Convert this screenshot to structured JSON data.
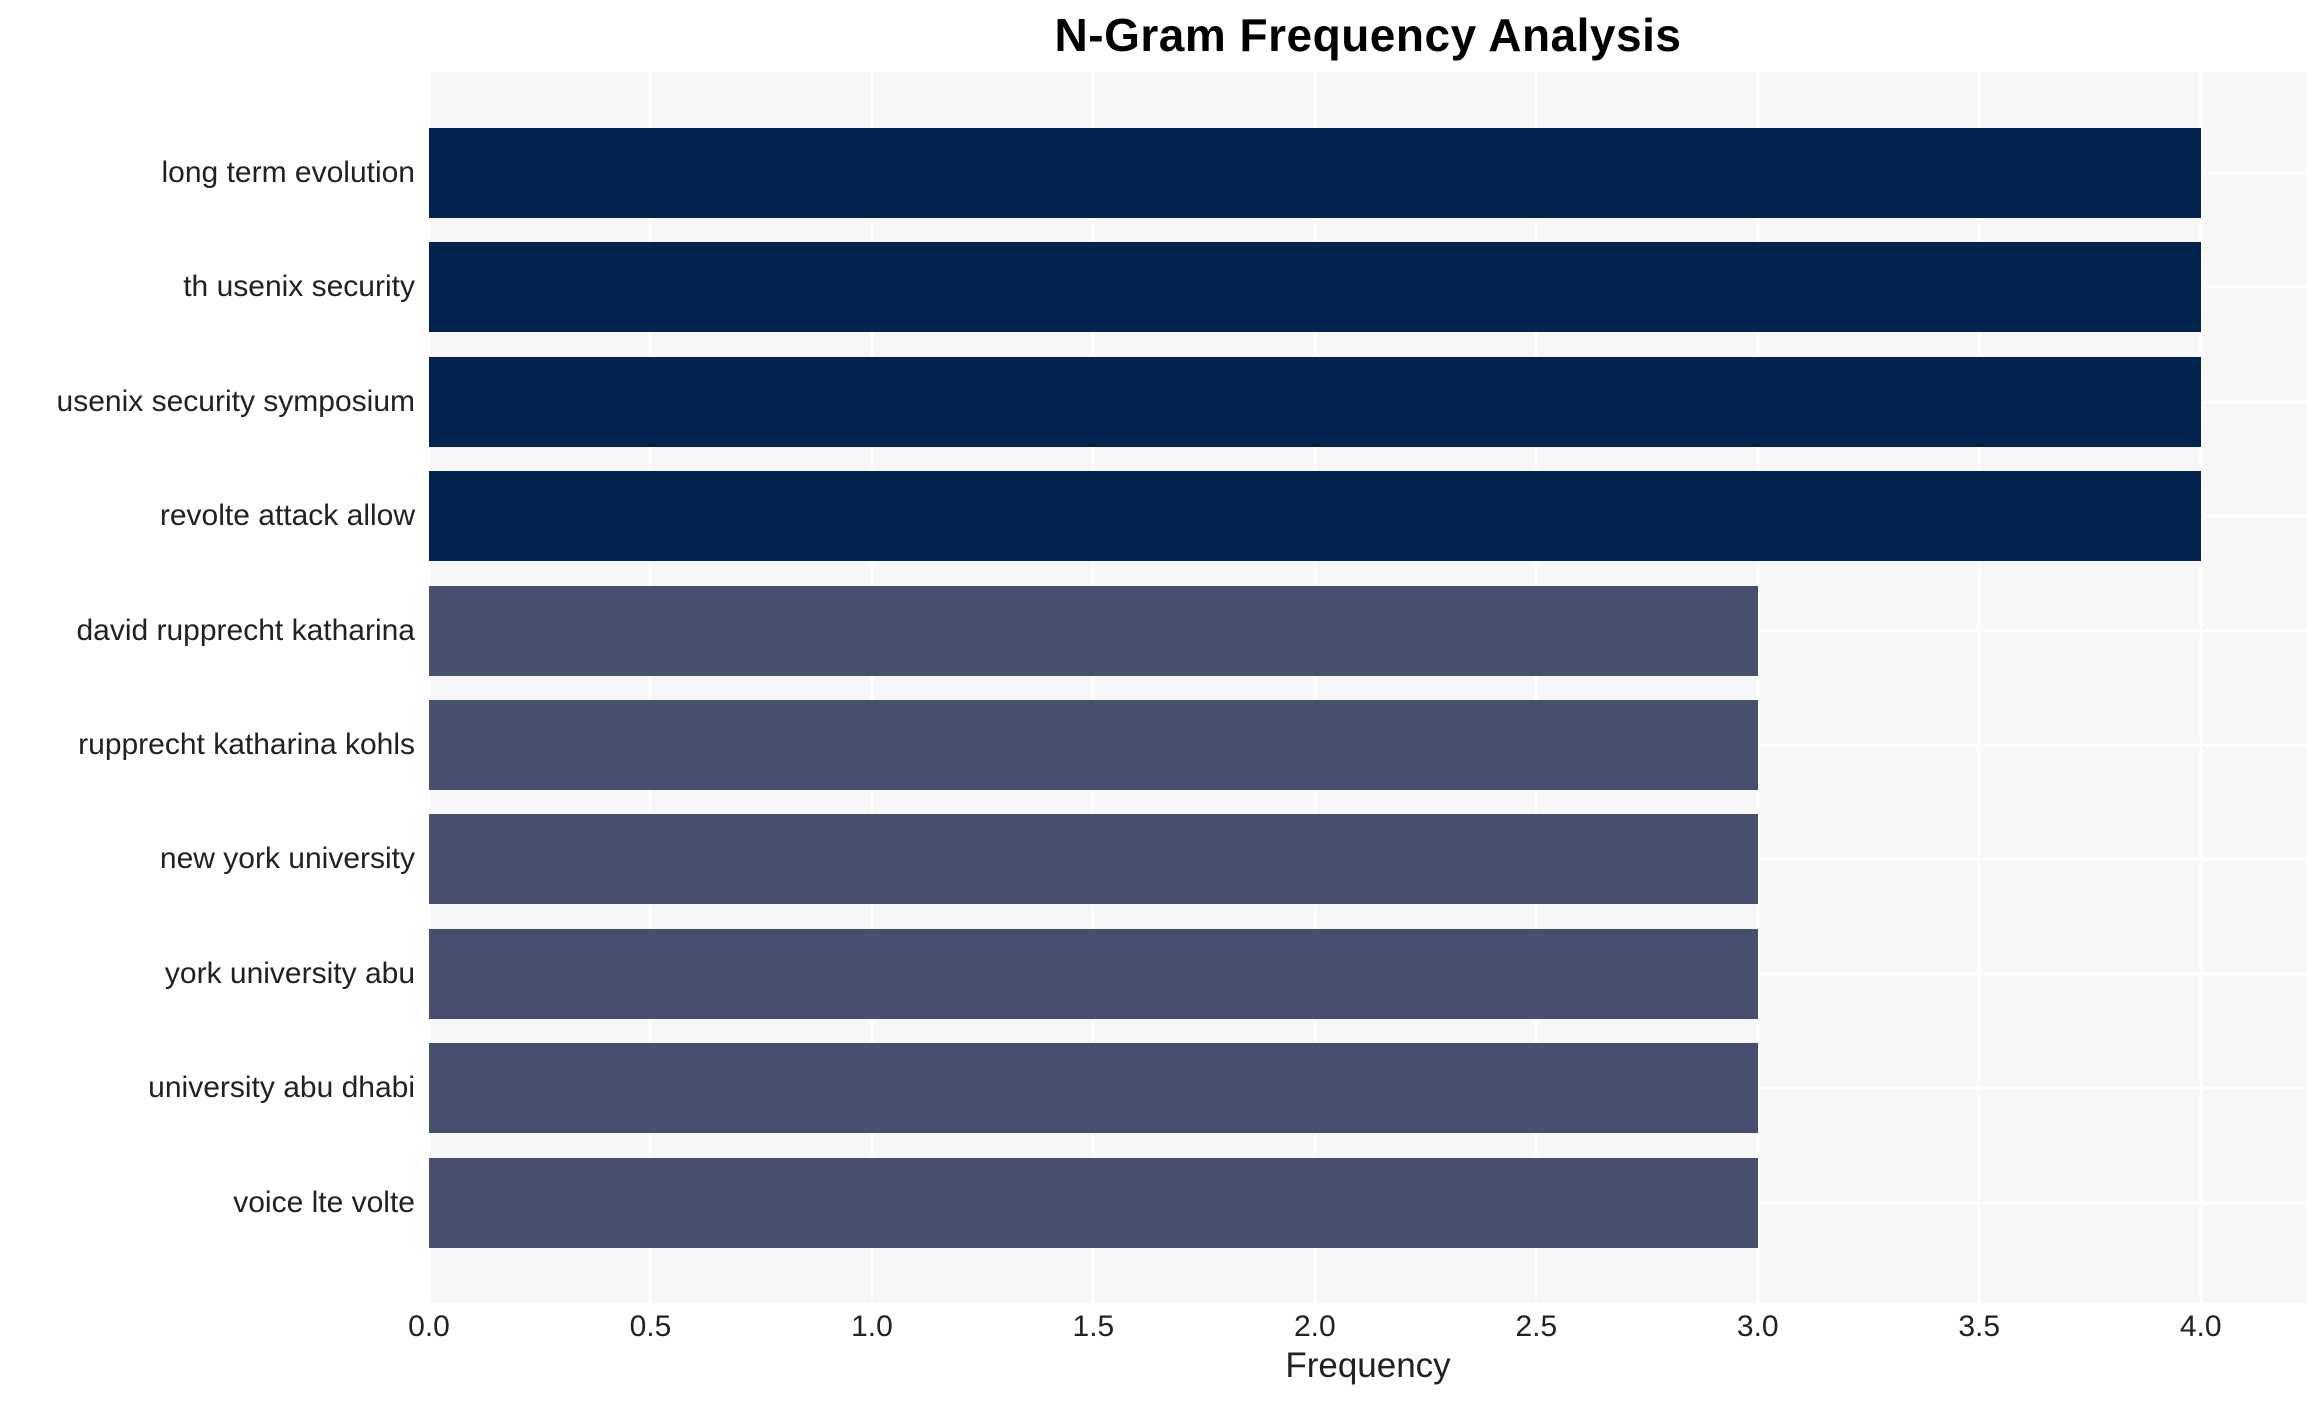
{
  "chart_data": {
    "type": "bar",
    "orientation": "horizontal",
    "title": "N-Gram Frequency Analysis",
    "xlabel": "Frequency",
    "ylabel": "",
    "categories": [
      "long term evolution",
      "th usenix security",
      "usenix security symposium",
      "revolte attack allow",
      "david rupprecht katharina",
      "rupprecht katharina kohls",
      "new york university",
      "york university abu",
      "university abu dhabi",
      "voice lte volte"
    ],
    "values": [
      4,
      4,
      4,
      4,
      3,
      3,
      3,
      3,
      3,
      3
    ],
    "bar_colors": [
      "#02234e",
      "#02234e",
      "#02234e",
      "#02234e",
      "#46506e",
      "#46506e",
      "#46506e",
      "#46506e",
      "#46506e",
      "#46506e"
    ],
    "xticks": [
      0,
      0.5,
      1,
      1.5,
      2,
      2.5,
      3,
      3.5,
      4
    ],
    "xtick_labels": [
      "0.0",
      "0.5",
      "1.0",
      "1.5",
      "2.0",
      "2.5",
      "3.0",
      "3.5",
      "4.0"
    ],
    "xlim": [
      0,
      4.24
    ],
    "grid": true,
    "legend": false,
    "colors": {
      "panel_bg": "#f7f7f7",
      "gridline": "#ffffff",
      "title_text": "#000000",
      "label_text": "#212121"
    }
  }
}
